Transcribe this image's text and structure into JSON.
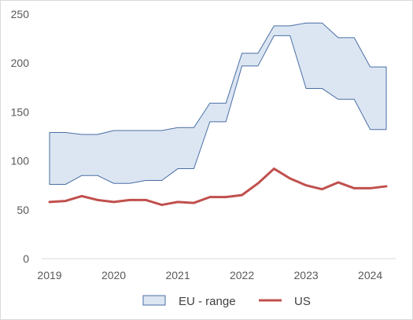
{
  "chart_data": {
    "type": "area",
    "title": "",
    "xlabel": "",
    "ylabel": "",
    "ylim": [
      0,
      250
    ],
    "yticks": [
      0,
      50,
      100,
      150,
      200,
      250
    ],
    "xticks": [
      "2019",
      "2020",
      "2021",
      "2022",
      "2023",
      "2024"
    ],
    "grid": false,
    "legend": "bottom",
    "x": [
      2019.0,
      2019.25,
      2019.5,
      2019.75,
      2020.0,
      2020.25,
      2020.5,
      2020.75,
      2021.0,
      2021.25,
      2021.5,
      2021.75,
      2022.0,
      2022.25,
      2022.5,
      2022.75,
      2023.0,
      2023.25,
      2023.5,
      2023.75,
      2024.0,
      2024.25
    ],
    "series": [
      {
        "name": "EU - range",
        "kind": "band",
        "color": "#dce6f2",
        "edge_color": "#4a6fa5",
        "upper": [
          129,
          129,
          127,
          127,
          131,
          131,
          131,
          131,
          134,
          134,
          159,
          159,
          210,
          210,
          238,
          238,
          241,
          241,
          226,
          226,
          196,
          196
        ],
        "lower": [
          76,
          76,
          85,
          85,
          77,
          77,
          80,
          80,
          92,
          92,
          140,
          140,
          197,
          197,
          228,
          228,
          174,
          174,
          163,
          163,
          132,
          132
        ]
      },
      {
        "name": "US",
        "kind": "line",
        "color": "#c0504d",
        "values": [
          58,
          59,
          64,
          60,
          58,
          60,
          60,
          55,
          58,
          57,
          63,
          63,
          65,
          77,
          92,
          82,
          75,
          71,
          78,
          72,
          72,
          74
        ]
      }
    ]
  }
}
